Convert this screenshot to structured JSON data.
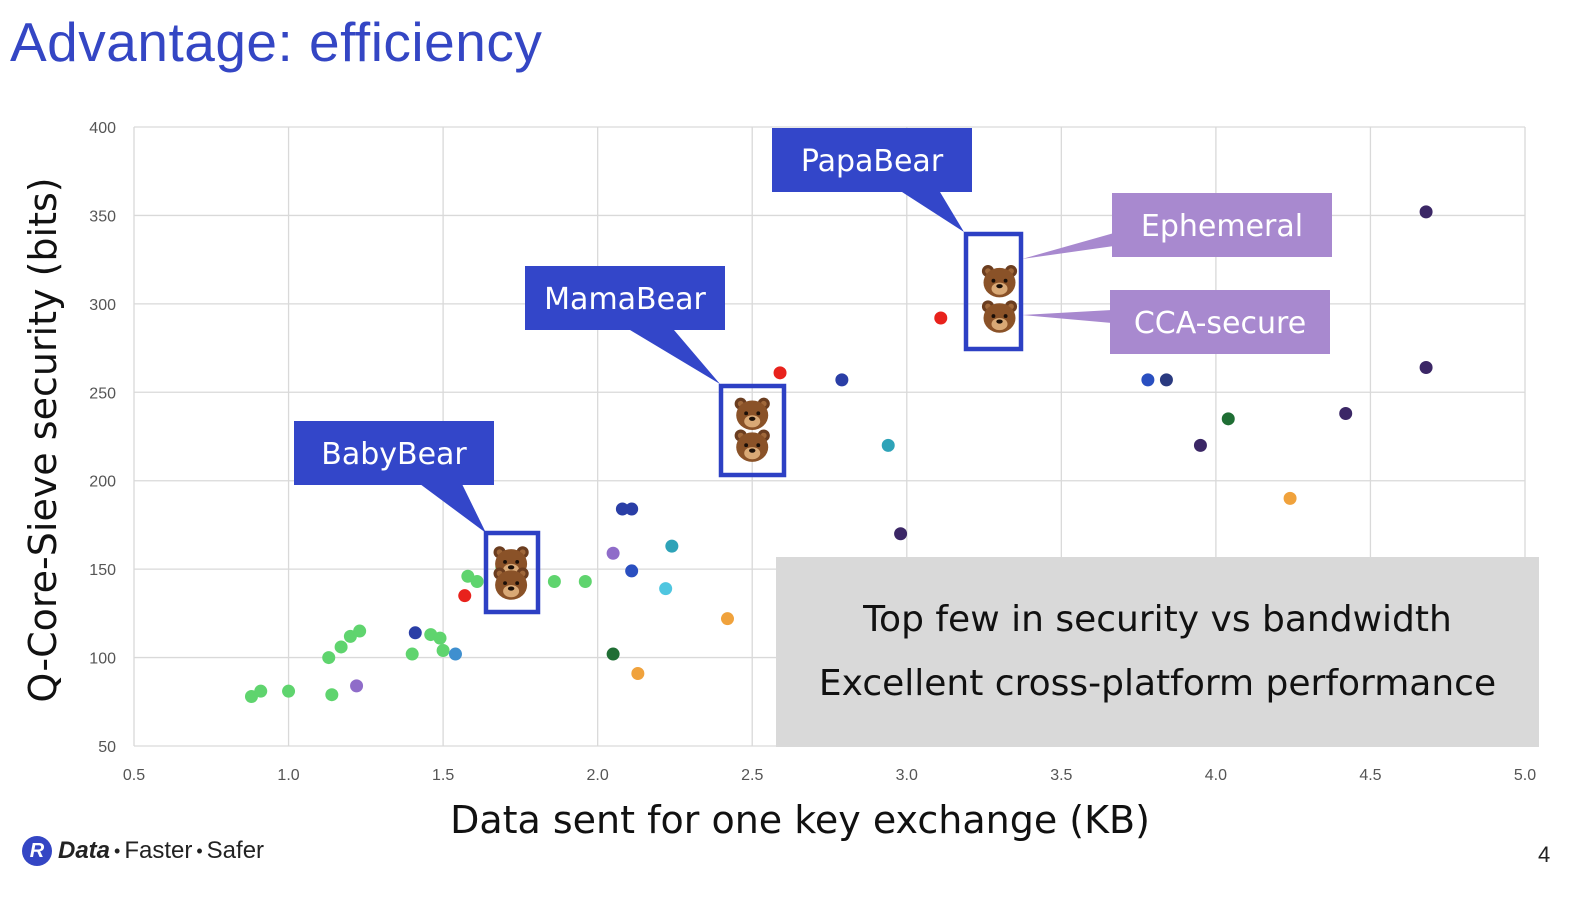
{
  "slide": {
    "title": "Advantage: efficiency",
    "page_number": "4"
  },
  "footer": {
    "logo_letter": "R",
    "logo_word": "Data",
    "tag1": "Faster",
    "tag2": "Safer",
    "separator": "•"
  },
  "note": {
    "line1": "Top few in security vs bandwidth",
    "line2": "Excellent cross-platform performance"
  },
  "colors": {
    "title": "#3446c4",
    "callout_blue": "#3346c9",
    "callout_purple": "#a889cf",
    "highlight_border": "#2d40c4",
    "grid": "#d9d9d9",
    "note_bg": "#d9d9d9"
  },
  "chart_data": {
    "type": "scatter",
    "title": "",
    "xlabel": "Data sent for one key exchange (KB)",
    "ylabel": "Q-Core-Sieve security (bits)",
    "xlim": [
      0.5,
      5.0
    ],
    "ylim": [
      50,
      400
    ],
    "xticks": [
      "0.5",
      "1.0",
      "1.5",
      "2.0",
      "2.5",
      "3.0",
      "3.5",
      "4.0",
      "4.5",
      "5.0"
    ],
    "yticks": [
      "50",
      "100",
      "150",
      "200",
      "250",
      "300",
      "350",
      "400"
    ],
    "grid": true,
    "points": [
      {
        "x": 0.88,
        "y": 78,
        "color": "#5fd46e"
      },
      {
        "x": 0.91,
        "y": 81,
        "color": "#5fd46e"
      },
      {
        "x": 1.0,
        "y": 81,
        "color": "#5fd46e"
      },
      {
        "x": 1.14,
        "y": 79,
        "color": "#5fd46e"
      },
      {
        "x": 1.13,
        "y": 100,
        "color": "#5fd46e"
      },
      {
        "x": 1.17,
        "y": 106,
        "color": "#5fd46e"
      },
      {
        "x": 1.2,
        "y": 112,
        "color": "#5fd46e"
      },
      {
        "x": 1.23,
        "y": 115,
        "color": "#5fd46e"
      },
      {
        "x": 1.22,
        "y": 84,
        "color": "#8f6cc9"
      },
      {
        "x": 1.4,
        "y": 102,
        "color": "#5fd46e"
      },
      {
        "x": 1.41,
        "y": 114,
        "color": "#2a3ea6"
      },
      {
        "x": 1.46,
        "y": 113,
        "color": "#5fd46e"
      },
      {
        "x": 1.49,
        "y": 111,
        "color": "#5fd46e"
      },
      {
        "x": 1.5,
        "y": 104,
        "color": "#5fd46e"
      },
      {
        "x": 1.54,
        "y": 102,
        "color": "#3f8fcf"
      },
      {
        "x": 1.57,
        "y": 135,
        "color": "#e8221c"
      },
      {
        "x": 1.58,
        "y": 146,
        "color": "#5fd46e"
      },
      {
        "x": 1.61,
        "y": 143,
        "color": "#5fd46e"
      },
      {
        "x": 1.69,
        "y": 151,
        "color": "#5fd46e"
      },
      {
        "x": 1.86,
        "y": 143,
        "color": "#5fd46e"
      },
      {
        "x": 1.96,
        "y": 143,
        "color": "#5fd46e"
      },
      {
        "x": 2.05,
        "y": 159,
        "color": "#8f6cc9"
      },
      {
        "x": 2.05,
        "y": 102,
        "color": "#1f6e34"
      },
      {
        "x": 2.08,
        "y": 184,
        "color": "#2a3ea6"
      },
      {
        "x": 2.11,
        "y": 184,
        "color": "#2a3ea6"
      },
      {
        "x": 2.11,
        "y": 149,
        "color": "#2a4fc0"
      },
      {
        "x": 2.13,
        "y": 91,
        "color": "#f0a23c"
      },
      {
        "x": 2.22,
        "y": 139,
        "color": "#4fc6e0"
      },
      {
        "x": 2.24,
        "y": 163,
        "color": "#2ea3b8"
      },
      {
        "x": 2.42,
        "y": 122,
        "color": "#f0a23c"
      },
      {
        "x": 2.59,
        "y": 261,
        "color": "#e8221c"
      },
      {
        "x": 2.79,
        "y": 257,
        "color": "#2a3ea6"
      },
      {
        "x": 2.94,
        "y": 220,
        "color": "#2ea3b8"
      },
      {
        "x": 2.98,
        "y": 170,
        "color": "#3b2766"
      },
      {
        "x": 3.11,
        "y": 292,
        "color": "#e8221c"
      },
      {
        "x": 3.78,
        "y": 257,
        "color": "#2a4fc0"
      },
      {
        "x": 3.84,
        "y": 257,
        "color": "#2a3a80"
      },
      {
        "x": 3.95,
        "y": 220,
        "color": "#3b2766"
      },
      {
        "x": 4.04,
        "y": 235,
        "color": "#1f6e34"
      },
      {
        "x": 4.24,
        "y": 190,
        "color": "#f0a23c"
      },
      {
        "x": 4.42,
        "y": 238,
        "color": "#3b2766"
      },
      {
        "x": 4.68,
        "y": 352,
        "color": "#3b2766"
      },
      {
        "x": 4.68,
        "y": 264,
        "color": "#3b2766"
      }
    ],
    "highlights": [
      {
        "name": "BabyBear",
        "x": 1.72,
        "y_top": 153,
        "y_bottom": 141
      },
      {
        "name": "MamaBear",
        "x": 2.5,
        "y_top": 237,
        "y_bottom": 219
      },
      {
        "name": "PapaBear",
        "x": 3.3,
        "y_top": 312,
        "y_bottom": 292
      }
    ],
    "annotations": [
      "BabyBear",
      "MamaBear",
      "PapaBear",
      "Ephemeral",
      "CCA-secure"
    ]
  }
}
